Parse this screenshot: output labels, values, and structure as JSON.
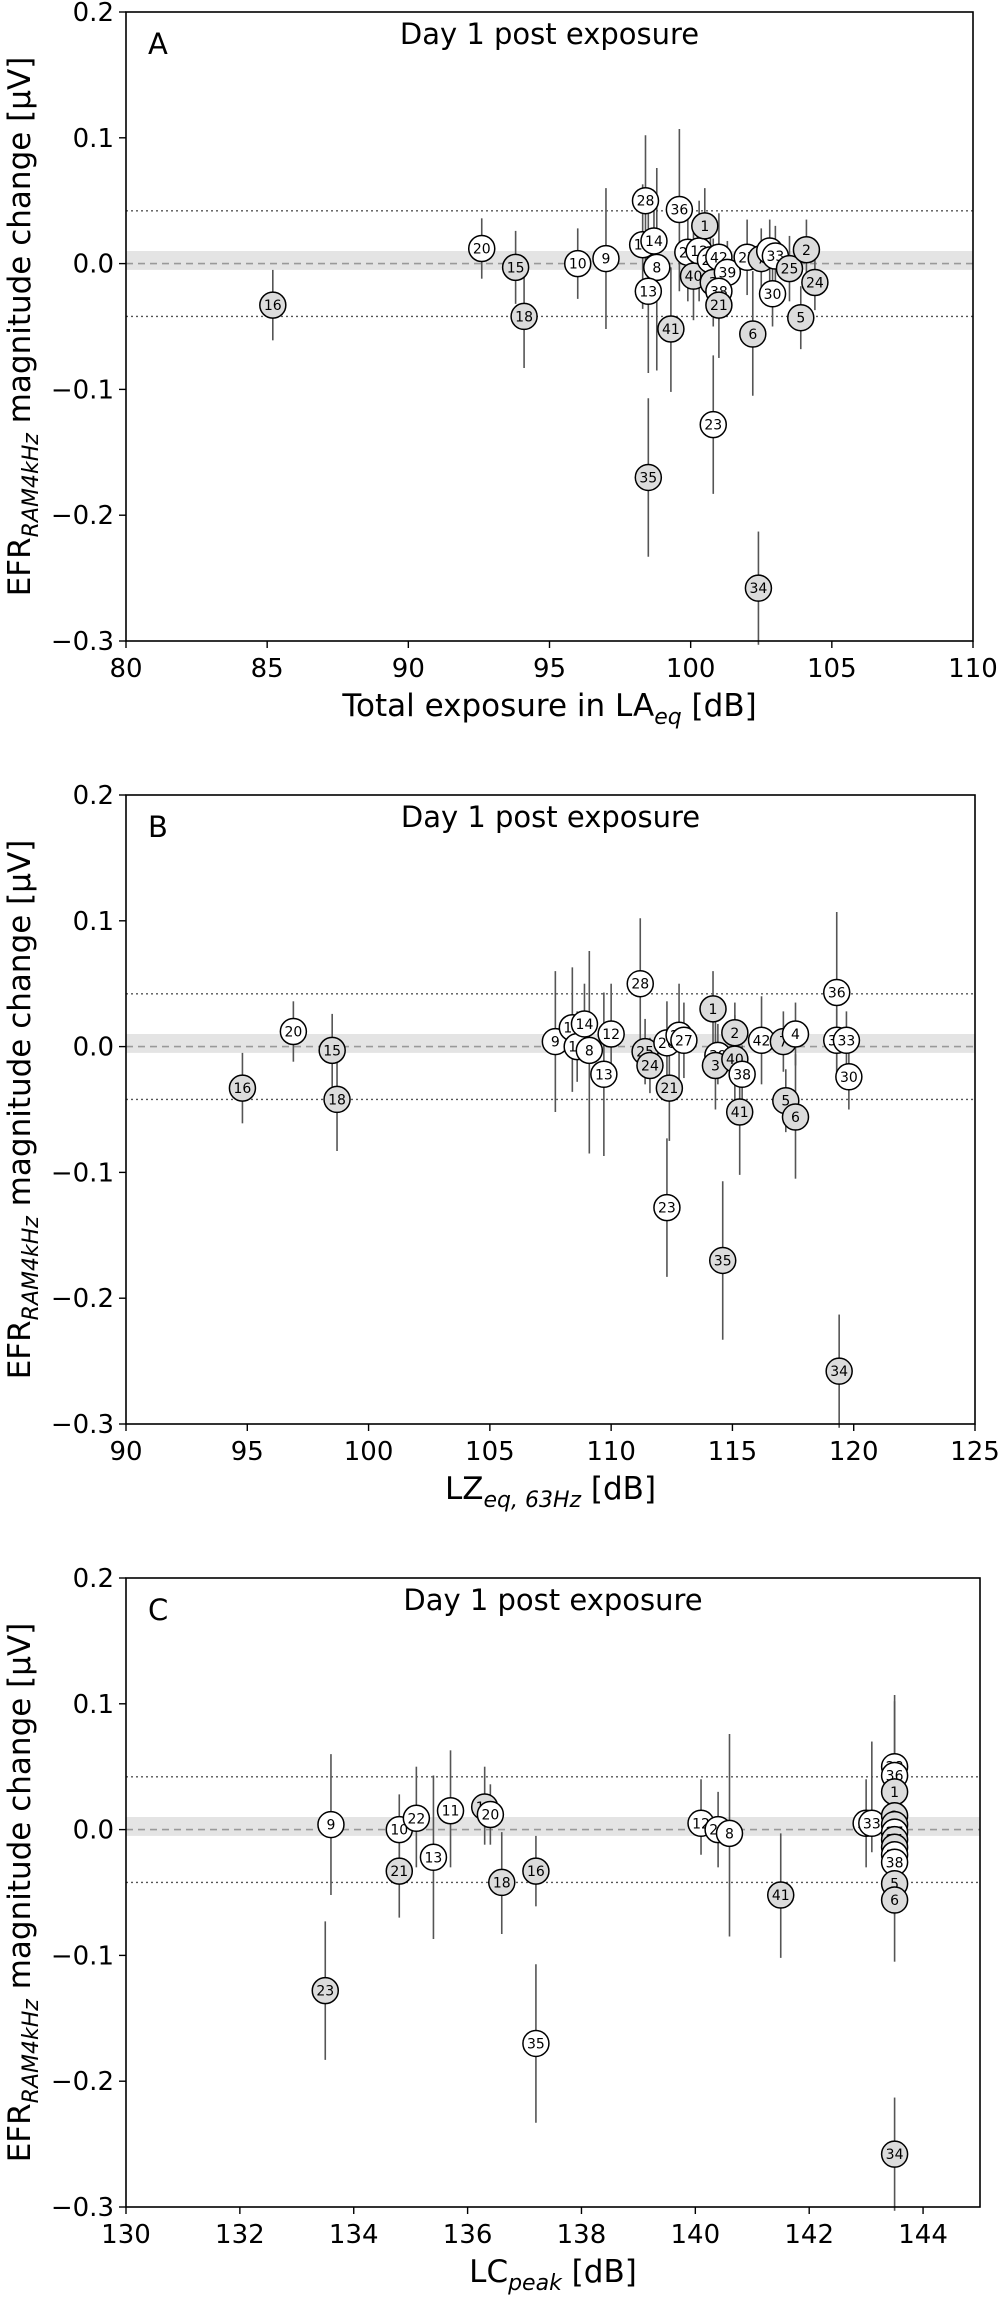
{
  "chart_data": [
    {
      "type": "scatter",
      "panel_letter": "A",
      "title": "Day 1 post exposure",
      "xlabel_main": "Total exposure in LA",
      "xlabel_sub": "eq",
      "xlabel_tail": " [dB]",
      "ylabel_main": "EFR",
      "ylabel_sub": "RAM4kHz",
      "ylabel_tail": " magnitude change [μV]",
      "xlim": [
        80,
        110
      ],
      "ylim": [
        -0.3,
        0.2
      ],
      "xticks": [
        80,
        85,
        90,
        95,
        100,
        105,
        110
      ],
      "xtick_labels": [
        "80",
        "85",
        "90",
        "95",
        "100",
        "105",
        "110"
      ],
      "yticks": [
        -0.3,
        -0.2,
        -0.1,
        0.0,
        0.1,
        0.2
      ],
      "ytick_labels": [
        "−0.3",
        "−0.2",
        "−0.1",
        "0.0",
        "0.1",
        "0.2"
      ],
      "reference_lines": {
        "dashed": 0.0,
        "dotted": [
          0.042,
          -0.042
        ],
        "band": [
          -0.005,
          0.01
        ]
      },
      "points": [
        {
          "id": "16",
          "x": 85.2,
          "y": -0.033,
          "lo": -0.061,
          "hi": -0.005,
          "fill": "gray"
        },
        {
          "id": "20",
          "x": 92.6,
          "y": 0.012,
          "lo": -0.012,
          "hi": 0.036,
          "fill": "white"
        },
        {
          "id": "15",
          "x": 93.8,
          "y": -0.003,
          "lo": -0.032,
          "hi": 0.026,
          "fill": "gray"
        },
        {
          "id": "18",
          "x": 94.1,
          "y": -0.042,
          "lo": -0.083,
          "hi": -0.002,
          "fill": "gray"
        },
        {
          "id": "10",
          "x": 96.0,
          "y": 0.0,
          "lo": -0.028,
          "hi": 0.028,
          "fill": "white"
        },
        {
          "id": "9",
          "x": 97.0,
          "y": 0.004,
          "lo": -0.052,
          "hi": 0.06,
          "fill": "white"
        },
        {
          "id": "28",
          "x": 98.4,
          "y": 0.05,
          "lo": 0.0,
          "hi": 0.102,
          "fill": "white"
        },
        {
          "id": "11",
          "x": 98.3,
          "y": 0.015,
          "lo": -0.036,
          "hi": 0.063,
          "fill": "white"
        },
        {
          "id": "14",
          "x": 98.7,
          "y": 0.018,
          "lo": -0.012,
          "hi": 0.05,
          "fill": "white"
        },
        {
          "id": "8",
          "x": 98.8,
          "y": -0.003,
          "lo": -0.085,
          "hi": 0.076,
          "fill": "white"
        },
        {
          "id": "13",
          "x": 98.5,
          "y": -0.022,
          "lo": -0.087,
          "hi": 0.043,
          "fill": "white"
        },
        {
          "id": "35",
          "x": 98.5,
          "y": -0.17,
          "lo": -0.233,
          "hi": -0.107,
          "fill": "gray"
        },
        {
          "id": "41",
          "x": 99.3,
          "y": -0.052,
          "lo": -0.102,
          "hi": -0.003,
          "fill": "gray"
        },
        {
          "id": "36",
          "x": 99.6,
          "y": 0.043,
          "lo": -0.022,
          "hi": 0.107,
          "fill": "white"
        },
        {
          "id": "22",
          "x": 99.9,
          "y": 0.009,
          "lo": -0.03,
          "hi": 0.05,
          "fill": "white"
        },
        {
          "id": "12",
          "x": 100.3,
          "y": 0.01,
          "lo": -0.03,
          "hi": 0.05,
          "fill": "white"
        },
        {
          "id": "40",
          "x": 100.1,
          "y": -0.01,
          "lo": -0.045,
          "hi": 0.025,
          "fill": "gray"
        },
        {
          "id": "1",
          "x": 100.5,
          "y": 0.03,
          "lo": 0.0,
          "hi": 0.06,
          "fill": "gray"
        },
        {
          "id": "26",
          "x": 100.7,
          "y": 0.003,
          "lo": -0.03,
          "hi": 0.036,
          "fill": "white"
        },
        {
          "id": "3",
          "x": 100.8,
          "y": -0.015,
          "lo": -0.05,
          "hi": 0.02,
          "fill": "gray"
        },
        {
          "id": "23",
          "x": 100.8,
          "y": -0.128,
          "lo": -0.183,
          "hi": -0.073,
          "fill": "white"
        },
        {
          "id": "42",
          "x": 101.0,
          "y": 0.005,
          "lo": -0.03,
          "hi": 0.04,
          "fill": "white"
        },
        {
          "id": "39",
          "x": 101.3,
          "y": -0.007,
          "lo": -0.03,
          "hi": 0.018,
          "fill": "white"
        },
        {
          "id": "38",
          "x": 101.0,
          "y": -0.022,
          "lo": -0.045,
          "hi": 0.001,
          "fill": "white"
        },
        {
          "id": "21",
          "x": 101.0,
          "y": -0.033,
          "lo": -0.075,
          "hi": 0.008,
          "fill": "gray"
        },
        {
          "id": "27",
          "x": 102.0,
          "y": 0.005,
          "lo": -0.025,
          "hi": 0.035,
          "fill": "white"
        },
        {
          "id": "6",
          "x": 102.2,
          "y": -0.056,
          "lo": -0.105,
          "hi": -0.006,
          "fill": "gray"
        },
        {
          "id": "34",
          "x": 102.4,
          "y": -0.258,
          "lo": -0.303,
          "hi": -0.213,
          "fill": "gray"
        },
        {
          "id": "7",
          "x": 102.5,
          "y": 0.004,
          "lo": -0.02,
          "hi": 0.028,
          "fill": "gray"
        },
        {
          "id": "4",
          "x": 102.8,
          "y": 0.01,
          "lo": -0.015,
          "hi": 0.035,
          "fill": "white"
        },
        {
          "id": "33",
          "x": 103.0,
          "y": 0.006,
          "lo": -0.018,
          "hi": 0.03,
          "fill": "white"
        },
        {
          "id": "30",
          "x": 102.9,
          "y": -0.024,
          "lo": -0.05,
          "hi": 0.002,
          "fill": "white"
        },
        {
          "id": "25",
          "x": 103.5,
          "y": -0.004,
          "lo": -0.03,
          "hi": 0.022,
          "fill": "gray"
        },
        {
          "id": "2",
          "x": 104.1,
          "y": 0.011,
          "lo": -0.013,
          "hi": 0.035,
          "fill": "gray"
        },
        {
          "id": "5",
          "x": 103.9,
          "y": -0.043,
          "lo": -0.068,
          "hi": -0.018,
          "fill": "gray"
        },
        {
          "id": "24",
          "x": 104.4,
          "y": -0.015,
          "lo": -0.037,
          "hi": 0.007,
          "fill": "gray"
        }
      ]
    },
    {
      "type": "scatter",
      "panel_letter": "B",
      "title": "Day 1 post exposure",
      "xlabel_main": "LZ",
      "xlabel_sub": "eq, 63Hz",
      "xlabel_tail": " [dB]",
      "ylabel_main": "EFR",
      "ylabel_sub": "RAM4kHz",
      "ylabel_tail": " magnitude change [μV]",
      "xlim": [
        90,
        125
      ],
      "ylim": [
        -0.3,
        0.2
      ],
      "xticks": [
        90,
        95,
        100,
        105,
        110,
        115,
        120,
        125
      ],
      "xtick_labels": [
        "90",
        "95",
        "100",
        "105",
        "110",
        "115",
        "120",
        "125"
      ],
      "yticks": [
        -0.3,
        -0.2,
        -0.1,
        0.0,
        0.1,
        0.2
      ],
      "ytick_labels": [
        "−0.3",
        "−0.2",
        "−0.1",
        "0.0",
        "0.1",
        "0.2"
      ],
      "reference_lines": {
        "dashed": 0.0,
        "dotted": [
          0.042,
          -0.042
        ],
        "band": [
          -0.005,
          0.01
        ]
      },
      "points": [
        {
          "id": "16",
          "x": 94.8,
          "y": -0.033,
          "lo": -0.061,
          "hi": -0.005,
          "fill": "gray"
        },
        {
          "id": "20",
          "x": 96.9,
          "y": 0.012,
          "lo": -0.012,
          "hi": 0.036,
          "fill": "white"
        },
        {
          "id": "15",
          "x": 98.5,
          "y": -0.003,
          "lo": -0.032,
          "hi": 0.026,
          "fill": "gray"
        },
        {
          "id": "18",
          "x": 98.7,
          "y": -0.042,
          "lo": -0.083,
          "hi": -0.002,
          "fill": "gray"
        },
        {
          "id": "9",
          "x": 107.7,
          "y": 0.004,
          "lo": -0.052,
          "hi": 0.06,
          "fill": "white"
        },
        {
          "id": "11",
          "x": 108.4,
          "y": 0.015,
          "lo": -0.036,
          "hi": 0.063,
          "fill": "white"
        },
        {
          "id": "10",
          "x": 108.6,
          "y": 0.0,
          "lo": -0.028,
          "hi": 0.028,
          "fill": "white"
        },
        {
          "id": "14",
          "x": 108.9,
          "y": 0.018,
          "lo": -0.012,
          "hi": 0.05,
          "fill": "white"
        },
        {
          "id": "8",
          "x": 109.1,
          "y": -0.003,
          "lo": -0.085,
          "hi": 0.076,
          "fill": "white"
        },
        {
          "id": "13",
          "x": 109.7,
          "y": -0.022,
          "lo": -0.087,
          "hi": 0.043,
          "fill": "white"
        },
        {
          "id": "12",
          "x": 110.0,
          "y": 0.01,
          "lo": -0.03,
          "hi": 0.05,
          "fill": "white"
        },
        {
          "id": "28",
          "x": 111.2,
          "y": 0.05,
          "lo": 0.0,
          "hi": 0.102,
          "fill": "white"
        },
        {
          "id": "25",
          "x": 111.4,
          "y": -0.004,
          "lo": -0.03,
          "hi": 0.022,
          "fill": "gray"
        },
        {
          "id": "24",
          "x": 111.6,
          "y": -0.015,
          "lo": -0.037,
          "hi": 0.007,
          "fill": "gray"
        },
        {
          "id": "26",
          "x": 112.3,
          "y": 0.003,
          "lo": -0.03,
          "hi": 0.036,
          "fill": "white"
        },
        {
          "id": "21",
          "x": 112.4,
          "y": -0.033,
          "lo": -0.075,
          "hi": 0.008,
          "fill": "gray"
        },
        {
          "id": "23",
          "x": 112.3,
          "y": -0.128,
          "lo": -0.183,
          "hi": -0.073,
          "fill": "white"
        },
        {
          "id": "22",
          "x": 112.8,
          "y": 0.009,
          "lo": -0.03,
          "hi": 0.05,
          "fill": "white"
        },
        {
          "id": "27",
          "x": 113.0,
          "y": 0.005,
          "lo": -0.025,
          "hi": 0.035,
          "fill": "white"
        },
        {
          "id": "1",
          "x": 114.2,
          "y": 0.03,
          "lo": 0.0,
          "hi": 0.06,
          "fill": "gray"
        },
        {
          "id": "39",
          "x": 114.4,
          "y": -0.007,
          "lo": -0.03,
          "hi": 0.018,
          "fill": "white"
        },
        {
          "id": "3",
          "x": 114.3,
          "y": -0.015,
          "lo": -0.05,
          "hi": 0.02,
          "fill": "gray"
        },
        {
          "id": "35",
          "x": 114.6,
          "y": -0.17,
          "lo": -0.233,
          "hi": -0.107,
          "fill": "gray"
        },
        {
          "id": "2",
          "x": 115.1,
          "y": 0.011,
          "lo": -0.013,
          "hi": 0.035,
          "fill": "gray"
        },
        {
          "id": "40",
          "x": 115.1,
          "y": -0.01,
          "lo": -0.045,
          "hi": 0.025,
          "fill": "gray"
        },
        {
          "id": "38",
          "x": 115.4,
          "y": -0.022,
          "lo": -0.045,
          "hi": 0.001,
          "fill": "white"
        },
        {
          "id": "41",
          "x": 115.3,
          "y": -0.052,
          "lo": -0.102,
          "hi": -0.003,
          "fill": "gray"
        },
        {
          "id": "42",
          "x": 116.2,
          "y": 0.005,
          "lo": -0.03,
          "hi": 0.04,
          "fill": "white"
        },
        {
          "id": "7",
          "x": 117.1,
          "y": 0.004,
          "lo": -0.02,
          "hi": 0.028,
          "fill": "gray"
        },
        {
          "id": "4",
          "x": 117.6,
          "y": 0.01,
          "lo": -0.015,
          "hi": 0.035,
          "fill": "white"
        },
        {
          "id": "5",
          "x": 117.2,
          "y": -0.043,
          "lo": -0.068,
          "hi": -0.018,
          "fill": "gray"
        },
        {
          "id": "6",
          "x": 117.6,
          "y": -0.056,
          "lo": -0.105,
          "hi": -0.006,
          "fill": "gray"
        },
        {
          "id": "36",
          "x": 119.3,
          "y": 0.043,
          "lo": -0.022,
          "hi": 0.107,
          "fill": "white"
        },
        {
          "id": "37",
          "x": 119.3,
          "y": 0.005,
          "lo": -0.02,
          "hi": 0.03,
          "fill": "white"
        },
        {
          "id": "33",
          "x": 119.7,
          "y": 0.005,
          "lo": -0.018,
          "hi": 0.028,
          "fill": "white"
        },
        {
          "id": "30",
          "x": 119.8,
          "y": -0.024,
          "lo": -0.05,
          "hi": 0.002,
          "fill": "white"
        },
        {
          "id": "34",
          "x": 119.4,
          "y": -0.258,
          "lo": -0.303,
          "hi": -0.213,
          "fill": "gray"
        }
      ]
    },
    {
      "type": "scatter",
      "panel_letter": "C",
      "title": "Day 1 post exposure",
      "xlabel_main": "LC",
      "xlabel_sub": "peak",
      "xlabel_tail": " [dB]",
      "ylabel_main": "EFR",
      "ylabel_sub": "RAM4kHz",
      "ylabel_tail": " magnitude change [μV]",
      "xlim": [
        130,
        145
      ],
      "ylim": [
        -0.3,
        0.2
      ],
      "xticks": [
        130,
        132,
        134,
        136,
        138,
        140,
        142,
        144
      ],
      "xtick_labels": [
        "130",
        "132",
        "134",
        "136",
        "138",
        "140",
        "142",
        "144"
      ],
      "yticks": [
        -0.3,
        -0.2,
        -0.1,
        0.0,
        0.1,
        0.2
      ],
      "ytick_labels": [
        "−0.3",
        "−0.2",
        "−0.1",
        "0.0",
        "0.1",
        "0.2"
      ],
      "reference_lines": {
        "dashed": 0.0,
        "dotted": [
          0.042,
          -0.042
        ],
        "band": [
          -0.005,
          0.01
        ]
      },
      "points": [
        {
          "id": "23",
          "x": 133.5,
          "y": -0.128,
          "lo": -0.183,
          "hi": -0.073,
          "fill": "gray"
        },
        {
          "id": "9",
          "x": 133.6,
          "y": 0.004,
          "lo": -0.052,
          "hi": 0.06,
          "fill": "white"
        },
        {
          "id": "10",
          "x": 134.8,
          "y": 0.0,
          "lo": -0.028,
          "hi": 0.028,
          "fill": "white"
        },
        {
          "id": "21",
          "x": 134.8,
          "y": -0.033,
          "lo": -0.07,
          "hi": 0.004,
          "fill": "gray"
        },
        {
          "id": "22",
          "x": 135.1,
          "y": 0.009,
          "lo": -0.03,
          "hi": 0.05,
          "fill": "white"
        },
        {
          "id": "13",
          "x": 135.4,
          "y": -0.022,
          "lo": -0.087,
          "hi": 0.043,
          "fill": "white"
        },
        {
          "id": "11",
          "x": 135.7,
          "y": 0.015,
          "lo": -0.03,
          "hi": 0.063,
          "fill": "white"
        },
        {
          "id": "14",
          "x": 136.3,
          "y": 0.018,
          "lo": -0.012,
          "hi": 0.05,
          "fill": "gray"
        },
        {
          "id": "20",
          "x": 136.4,
          "y": 0.012,
          "lo": -0.012,
          "hi": 0.036,
          "fill": "white"
        },
        {
          "id": "18",
          "x": 136.6,
          "y": -0.042,
          "lo": -0.083,
          "hi": -0.002,
          "fill": "gray"
        },
        {
          "id": "16",
          "x": 137.2,
          "y": -0.033,
          "lo": -0.061,
          "hi": -0.005,
          "fill": "gray"
        },
        {
          "id": "35",
          "x": 137.2,
          "y": -0.17,
          "lo": -0.233,
          "hi": -0.107,
          "fill": "white"
        },
        {
          "id": "12",
          "x": 140.1,
          "y": 0.005,
          "lo": -0.02,
          "hi": 0.04,
          "fill": "white"
        },
        {
          "id": "26",
          "x": 140.4,
          "y": 0.0,
          "lo": -0.03,
          "hi": 0.03,
          "fill": "white"
        },
        {
          "id": "8",
          "x": 140.6,
          "y": -0.003,
          "lo": -0.085,
          "hi": 0.076,
          "fill": "white"
        },
        {
          "id": "41",
          "x": 141.5,
          "y": -0.052,
          "lo": -0.102,
          "hi": -0.003,
          "fill": "gray"
        },
        {
          "id": "31",
          "x": 143.0,
          "y": 0.005,
          "lo": -0.03,
          "hi": 0.04,
          "fill": "white"
        },
        {
          "id": "33",
          "x": 143.1,
          "y": 0.005,
          "lo": -0.018,
          "hi": 0.07,
          "fill": "white"
        },
        {
          "id": "28",
          "x": 143.5,
          "y": 0.05,
          "lo": 0.0,
          "hi": 0.102,
          "fill": "white"
        },
        {
          "id": "36",
          "x": 143.5,
          "y": 0.043,
          "lo": -0.022,
          "hi": 0.107,
          "fill": "white"
        },
        {
          "id": "1",
          "x": 143.5,
          "y": 0.03,
          "lo": 0.0,
          "hi": 0.06,
          "fill": "gray"
        },
        {
          "id": "2",
          "x": 143.5,
          "y": 0.011,
          "lo": -0.013,
          "hi": 0.035,
          "fill": "gray"
        },
        {
          "id": "7",
          "x": 143.5,
          "y": 0.004,
          "lo": -0.02,
          "hi": 0.028,
          "fill": "gray"
        },
        {
          "id": "27",
          "x": 143.5,
          "y": -0.002,
          "lo": -0.025,
          "hi": 0.021,
          "fill": "white"
        },
        {
          "id": "24",
          "x": 143.5,
          "y": -0.008,
          "lo": -0.03,
          "hi": 0.014,
          "fill": "gray"
        },
        {
          "id": "3",
          "x": 143.5,
          "y": -0.014,
          "lo": -0.036,
          "hi": 0.008,
          "fill": "gray"
        },
        {
          "id": "30",
          "x": 143.5,
          "y": -0.02,
          "lo": -0.042,
          "hi": 0.002,
          "fill": "white"
        },
        {
          "id": "38",
          "x": 143.5,
          "y": -0.026,
          "lo": -0.048,
          "hi": -0.004,
          "fill": "white"
        },
        {
          "id": "5",
          "x": 143.5,
          "y": -0.043,
          "lo": -0.068,
          "hi": -0.018,
          "fill": "gray"
        },
        {
          "id": "6",
          "x": 143.5,
          "y": -0.056,
          "lo": -0.105,
          "hi": -0.006,
          "fill": "gray"
        },
        {
          "id": "34",
          "x": 143.5,
          "y": -0.258,
          "lo": -0.303,
          "hi": -0.213,
          "fill": "gray"
        }
      ]
    }
  ]
}
